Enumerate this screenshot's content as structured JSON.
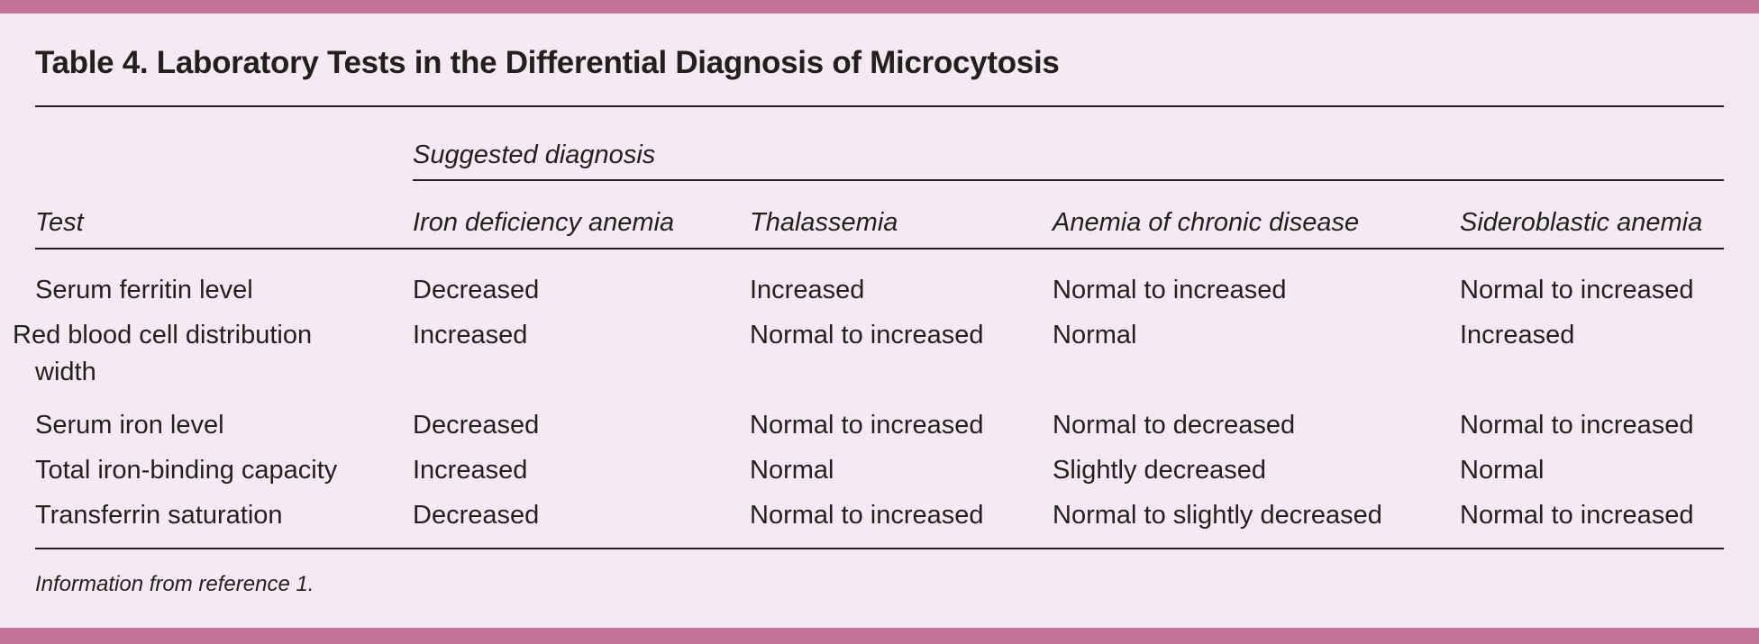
{
  "title": "Table 4. Laboratory Tests in the Differential Diagnosis of Microcytosis",
  "group_header": "Suggested diagnosis",
  "columns": [
    "Test",
    "Iron deficiency anemia",
    "Thalassemia",
    "Anemia of chronic disease",
    "Sideroblastic anemia"
  ],
  "rows": [
    [
      "Serum ferritin level",
      "Decreased",
      "Increased",
      "Normal to increased",
      "Normal to increased"
    ],
    [
      "Red blood cell distribution width",
      "Increased",
      "Normal to increased",
      "Normal",
      "Increased"
    ],
    [
      "Serum iron level",
      "Decreased",
      "Normal to increased",
      "Normal to decreased",
      "Normal to increased"
    ],
    [
      "Total iron-binding capacity",
      "Increased",
      "Normal",
      "Slightly decreased",
      "Normal"
    ],
    [
      "Transferrin saturation",
      "Decreased",
      "Normal to increased",
      "Normal to slightly decreased",
      "Normal to increased"
    ]
  ],
  "footnote": "Information from reference 1.",
  "colors": {
    "accent": "#c4739b",
    "background": "#f6eaf2",
    "text": "#231f20"
  }
}
